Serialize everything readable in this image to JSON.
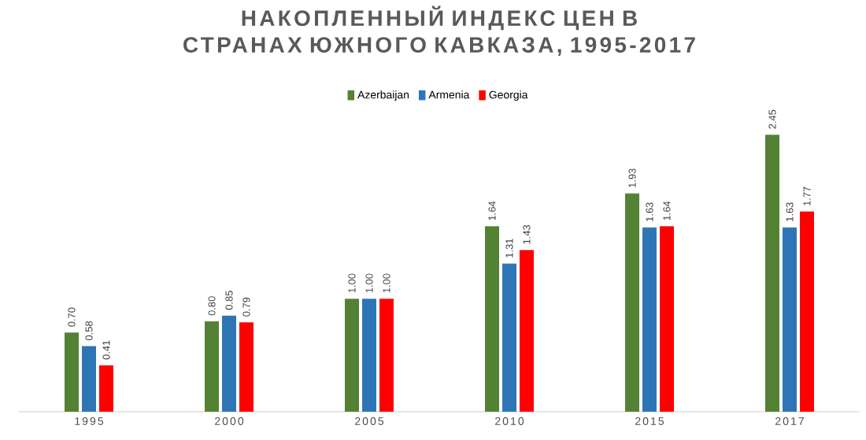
{
  "chart_data": {
    "type": "bar",
    "title": "НАКОПЛЕННЫЙ ИНДЕКС ЦЕН В СТРАНАХ ЮЖНОГО КАВКАЗА, 1995-2017",
    "categories": [
      "1995",
      "2000",
      "2005",
      "2010",
      "2015",
      "2017"
    ],
    "series": [
      {
        "name": "Azerbaijan",
        "color": "#548235",
        "values": [
          0.7,
          0.8,
          1.0,
          1.64,
          1.93,
          2.45
        ],
        "value_labels": [
          "0.70",
          "0.80",
          "1.00",
          "1.64",
          "1.93",
          "2.45"
        ]
      },
      {
        "name": "Armenia",
        "color": "#2e75b6",
        "values": [
          0.58,
          0.85,
          1.0,
          1.31,
          1.63,
          1.63
        ],
        "value_labels": [
          "0.58",
          "0.85",
          "1.00",
          "1.31",
          "1.63",
          "1.63"
        ]
      },
      {
        "name": "Georgia",
        "color": "#ff0000",
        "values": [
          0.41,
          0.79,
          1.0,
          1.43,
          1.64,
          1.77
        ],
        "value_labels": [
          "0.41",
          "0.79",
          "1.00",
          "1.43",
          "1.64",
          "1.77"
        ]
      }
    ],
    "legend": "top",
    "grid": false
  }
}
